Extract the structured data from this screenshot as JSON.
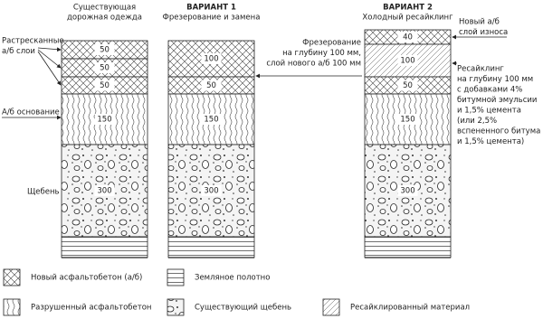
{
  "columns": [
    {
      "title": [
        "Существующая",
        "дорожная одежда"
      ],
      "layers": [
        50,
        50,
        50,
        150,
        300
      ]
    },
    {
      "title": [
        "ВАРИАНТ 1",
        "Фрезерование и замена"
      ],
      "layers": [
        100,
        50,
        150,
        300
      ]
    },
    {
      "title": [
        "ВАРИАНТ 2",
        "Холодный ресайклинг"
      ],
      "layers": [
        40,
        100,
        50,
        150,
        300
      ]
    }
  ],
  "annotations": [
    {
      "lines": [
        "Растресканные",
        "а/б слои"
      ]
    },
    {
      "lines": [
        "А/б основание"
      ]
    },
    {
      "lines": [
        "Щебень"
      ]
    },
    {
      "lines": [
        "Фрезерование",
        "на глубину 100 мм,",
        "слой нового а/б 100 мм"
      ]
    },
    {
      "lines": [
        "Новый а/б",
        "слой износа"
      ]
    },
    {
      "lines": [
        "Ресайклинг",
        "на глубину 100 мм",
        "с добавками 4%",
        "битумной эмульсии",
        "и 1,5% цемента",
        "(или 2,5%",
        "вспененного битума",
        "и 1,5% цемента)"
      ]
    }
  ],
  "legend": [
    "Новый асфальтобетон (а/б)",
    "Земляное полотно",
    "Разрушенный асфальтобетон",
    "Существующий щебень",
    "Ресайклированный материал"
  ]
}
